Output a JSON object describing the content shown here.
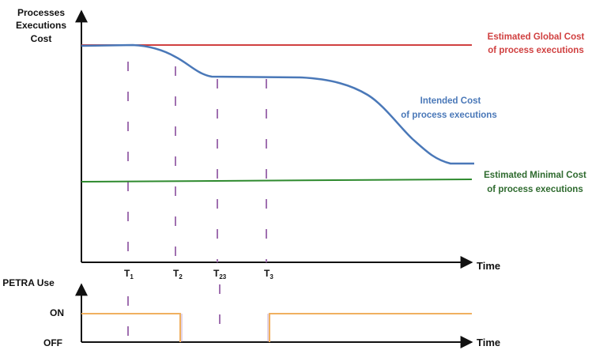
{
  "top_axis": {
    "ylabel_lines": [
      "Processes",
      "Executions",
      "Cost"
    ],
    "xlabel": "Time"
  },
  "bottom_axis": {
    "ylabel": "PETRA Use",
    "on_label": "ON",
    "off_label": "OFF",
    "xlabel": "Time"
  },
  "markers": [
    {
      "main": "T",
      "sub": "1"
    },
    {
      "main": "T",
      "sub": "2"
    },
    {
      "main": "T",
      "sub": "23"
    },
    {
      "main": "T",
      "sub": "3"
    }
  ],
  "curves": {
    "global": {
      "lines": [
        "Estimated Global Cost",
        "of process executions"
      ],
      "color": "#d04040"
    },
    "intended": {
      "lines": [
        "Intended Cost",
        "of process executions"
      ],
      "color": "#4a78b8"
    },
    "minimal": {
      "lines": [
        "Estimated Minimal Cost",
        "of process executions"
      ],
      "color": "#2e8a2e"
    }
  },
  "petra_line_color": "#f0b060",
  "marker_color": "#a070b0"
}
